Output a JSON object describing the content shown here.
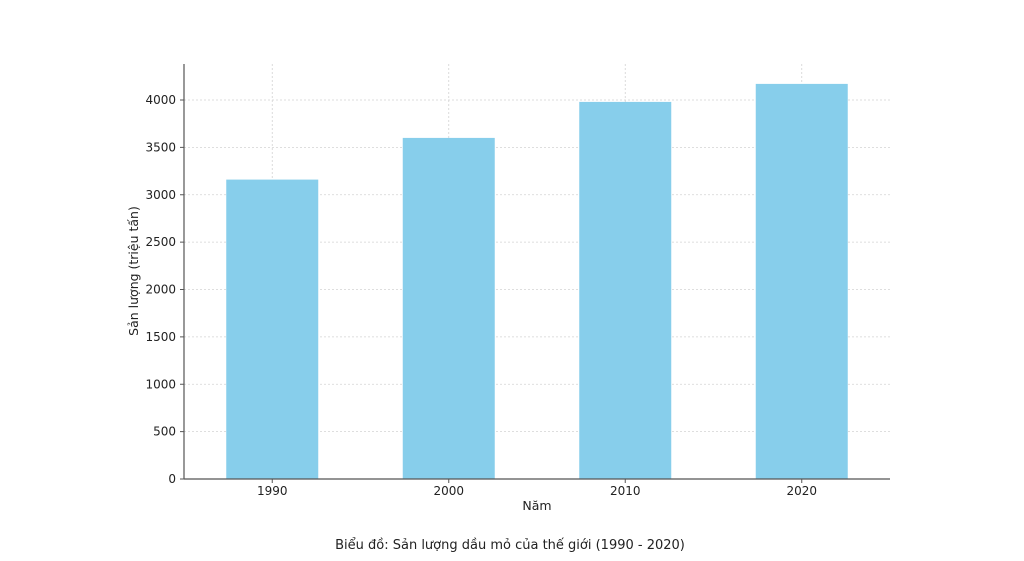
{
  "chart_data": {
    "type": "bar",
    "categories": [
      "1990",
      "2000",
      "2010",
      "2020"
    ],
    "values": [
      3160,
      3600,
      3980,
      4170
    ],
    "title": "",
    "xlabel": "Năm",
    "ylabel": "Sản lượng (triệu tấn)",
    "ylim": [
      0,
      4380
    ],
    "yticks": [
      0,
      500,
      1000,
      1500,
      2000,
      2500,
      3000,
      3500,
      4000
    ],
    "grid": true,
    "bar_color": "#87CEEB"
  },
  "caption": "Biểu đồ: Sản lượng dầu mỏ của thế giới (1990 - 2020)"
}
